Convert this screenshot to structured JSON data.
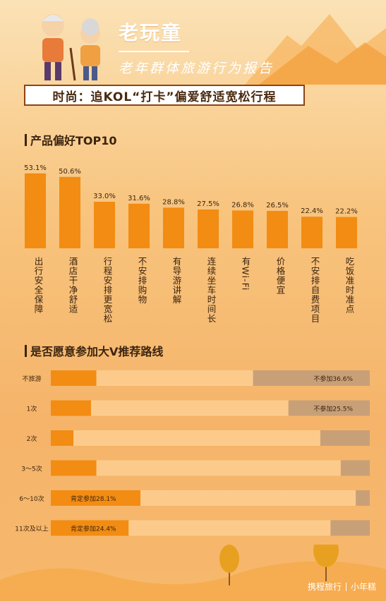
{
  "header": {
    "brand": "老玩童",
    "subtitle": "老年群体旅游行为报告",
    "banner": "时尚：追KOL“打卡”偏爱舒适宽松行程"
  },
  "section1": {
    "title": "产品偏好TOP10"
  },
  "section2": {
    "title": "是否愿意参加大V推荐路线"
  },
  "footer": {
    "logo": "携程旅行",
    "sublogo": "小年糕"
  },
  "colors": {
    "bar_dark": "#f28c12",
    "bar_light": "#fccb8c",
    "bar_grey": "#c8a078",
    "text_dark": "#3c2410"
  },
  "chart_data": [
    {
      "type": "bar",
      "title": "产品偏好TOP10",
      "categories": [
        "出行安全保障",
        "酒店干净舒适",
        "行程安排更宽松",
        "不安排购物",
        "有导游讲解",
        "连续坐车时间长",
        "有Wi-Fi",
        "价格便宜",
        "不安排自费项目",
        "吃饭准时准点"
      ],
      "values": [
        53.1,
        50.6,
        33.0,
        31.6,
        28.8,
        27.5,
        26.8,
        26.5,
        22.4,
        22.2
      ],
      "value_labels": [
        "53.1%",
        "50.6%",
        "33.0%",
        "31.6%",
        "28.8%",
        "27.5%",
        "26.8%",
        "26.5%",
        "22.4%",
        "22.2%"
      ],
      "ylim": [
        0,
        60
      ]
    },
    {
      "type": "bar",
      "title": "是否愿意参加大V推荐路线",
      "orientation": "horizontal",
      "stacked": true,
      "categories": [
        "不旅游",
        "1次",
        "2次",
        "3～5次",
        "6～10次",
        "11次及以上"
      ],
      "series": [
        {
          "values": [
            14.3,
            12.6,
            7.1,
            14.3,
            28.1,
            24.4
          ]
        },
        {
          "values": [
            49.1,
            61.9,
            77.4,
            76.6,
            67.5,
            63.3
          ]
        },
        {
          "name": "不参加",
          "values": [
            36.6,
            25.5,
            15.5,
            9.1,
            4.4,
            12.3
          ]
        }
      ],
      "annotations": [
        {
          "category": "不旅游",
          "text": "不参加36.6%"
        },
        {
          "category": "1次",
          "text": "不参加25.5%"
        },
        {
          "category": "6～10次",
          "text": "肯定参加28.1%"
        },
        {
          "category": "11次及以上",
          "text": "肯定参加24.4%"
        }
      ],
      "xlim": [
        0,
        100
      ]
    }
  ]
}
